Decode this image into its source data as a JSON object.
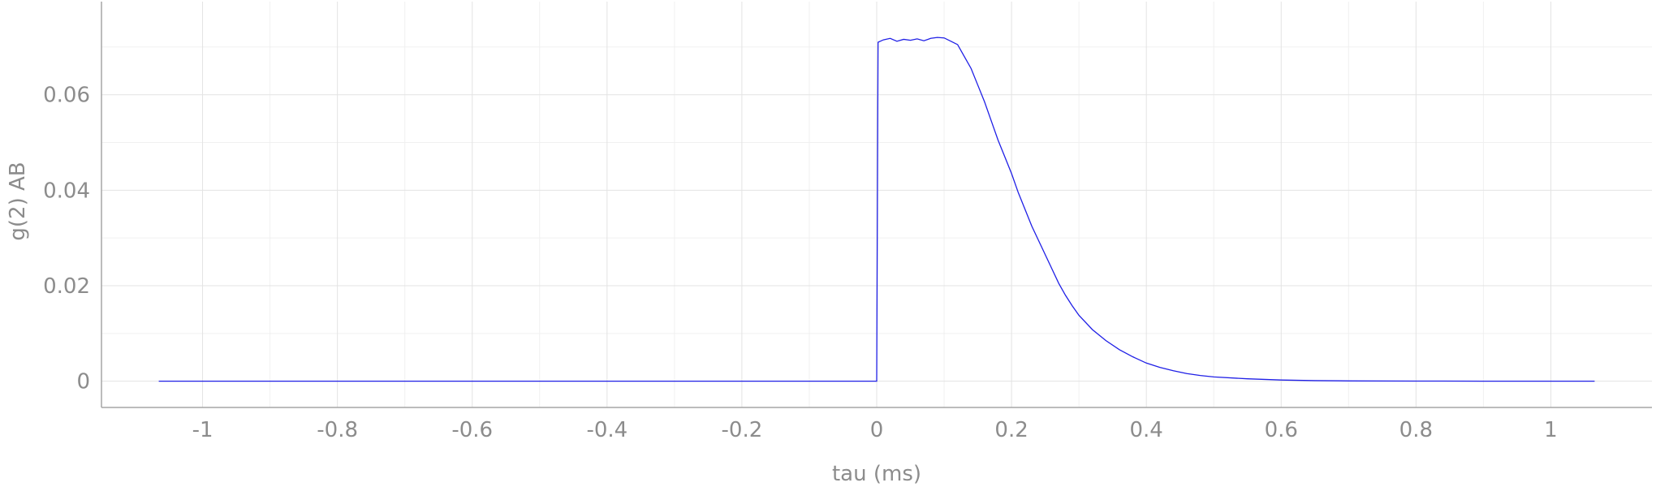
{
  "colors": {
    "series": "#1f1fe6",
    "tick_text": "#8c8c8c",
    "grid": "#e3e3e3",
    "axis": "#a6a6a6",
    "background": "#ffffff"
  },
  "chart_data": {
    "type": "line",
    "title": "",
    "xlabel": "tau (ms)",
    "ylabel": "g(2) AB",
    "xlim": [
      -1.15,
      1.15
    ],
    "ylim": [
      -0.0055,
      0.0795
    ],
    "x_ticks": [
      -1,
      -0.8,
      -0.6,
      -0.4,
      -0.2,
      0,
      0.2,
      0.4,
      0.6,
      0.8,
      1
    ],
    "x_tick_labels": [
      "-1",
      "-0.8",
      "-0.6",
      "-0.4",
      "-0.2",
      "0",
      "0.2",
      "0.4",
      "0.6",
      "0.8",
      "1"
    ],
    "y_ticks": [
      0,
      0.02,
      0.04,
      0.06
    ],
    "y_tick_labels": [
      "0",
      "0.02",
      "0.04",
      "0.06"
    ],
    "grid": true,
    "legend": "none",
    "series": [
      {
        "color": "#1f1fe6",
        "x": [
          -1.065,
          -0.8,
          -0.6,
          -0.4,
          -0.2,
          -0.002,
          0.0,
          0.002,
          0.01,
          0.02,
          0.03,
          0.04,
          0.05,
          0.06,
          0.07,
          0.08,
          0.09,
          0.1,
          0.11,
          0.12,
          0.13,
          0.14,
          0.15,
          0.16,
          0.17,
          0.18,
          0.19,
          0.2,
          0.21,
          0.22,
          0.23,
          0.24,
          0.25,
          0.26,
          0.27,
          0.28,
          0.29,
          0.3,
          0.32,
          0.34,
          0.36,
          0.38,
          0.4,
          0.42,
          0.44,
          0.46,
          0.48,
          0.5,
          0.55,
          0.6,
          0.65,
          0.7,
          0.8,
          0.9,
          1.0,
          1.065
        ],
        "y": [
          0.0,
          0.0,
          0.0,
          0.0,
          0.0,
          0.0,
          0.0,
          0.071,
          0.0715,
          0.0718,
          0.0712,
          0.0716,
          0.0714,
          0.0717,
          0.0713,
          0.0718,
          0.072,
          0.0719,
          0.0712,
          0.0705,
          0.068,
          0.0655,
          0.062,
          0.0585,
          0.0545,
          0.0505,
          0.047,
          0.0435,
          0.0395,
          0.036,
          0.0325,
          0.0295,
          0.0265,
          0.0235,
          0.0205,
          0.018,
          0.0158,
          0.0138,
          0.0108,
          0.0085,
          0.0066,
          0.0051,
          0.0038,
          0.0029,
          0.0022,
          0.0016,
          0.0012,
          0.0009,
          0.0005,
          0.00025,
          0.00012,
          6e-05,
          3e-05,
          1e-05,
          0.0,
          0.0
        ]
      }
    ]
  }
}
